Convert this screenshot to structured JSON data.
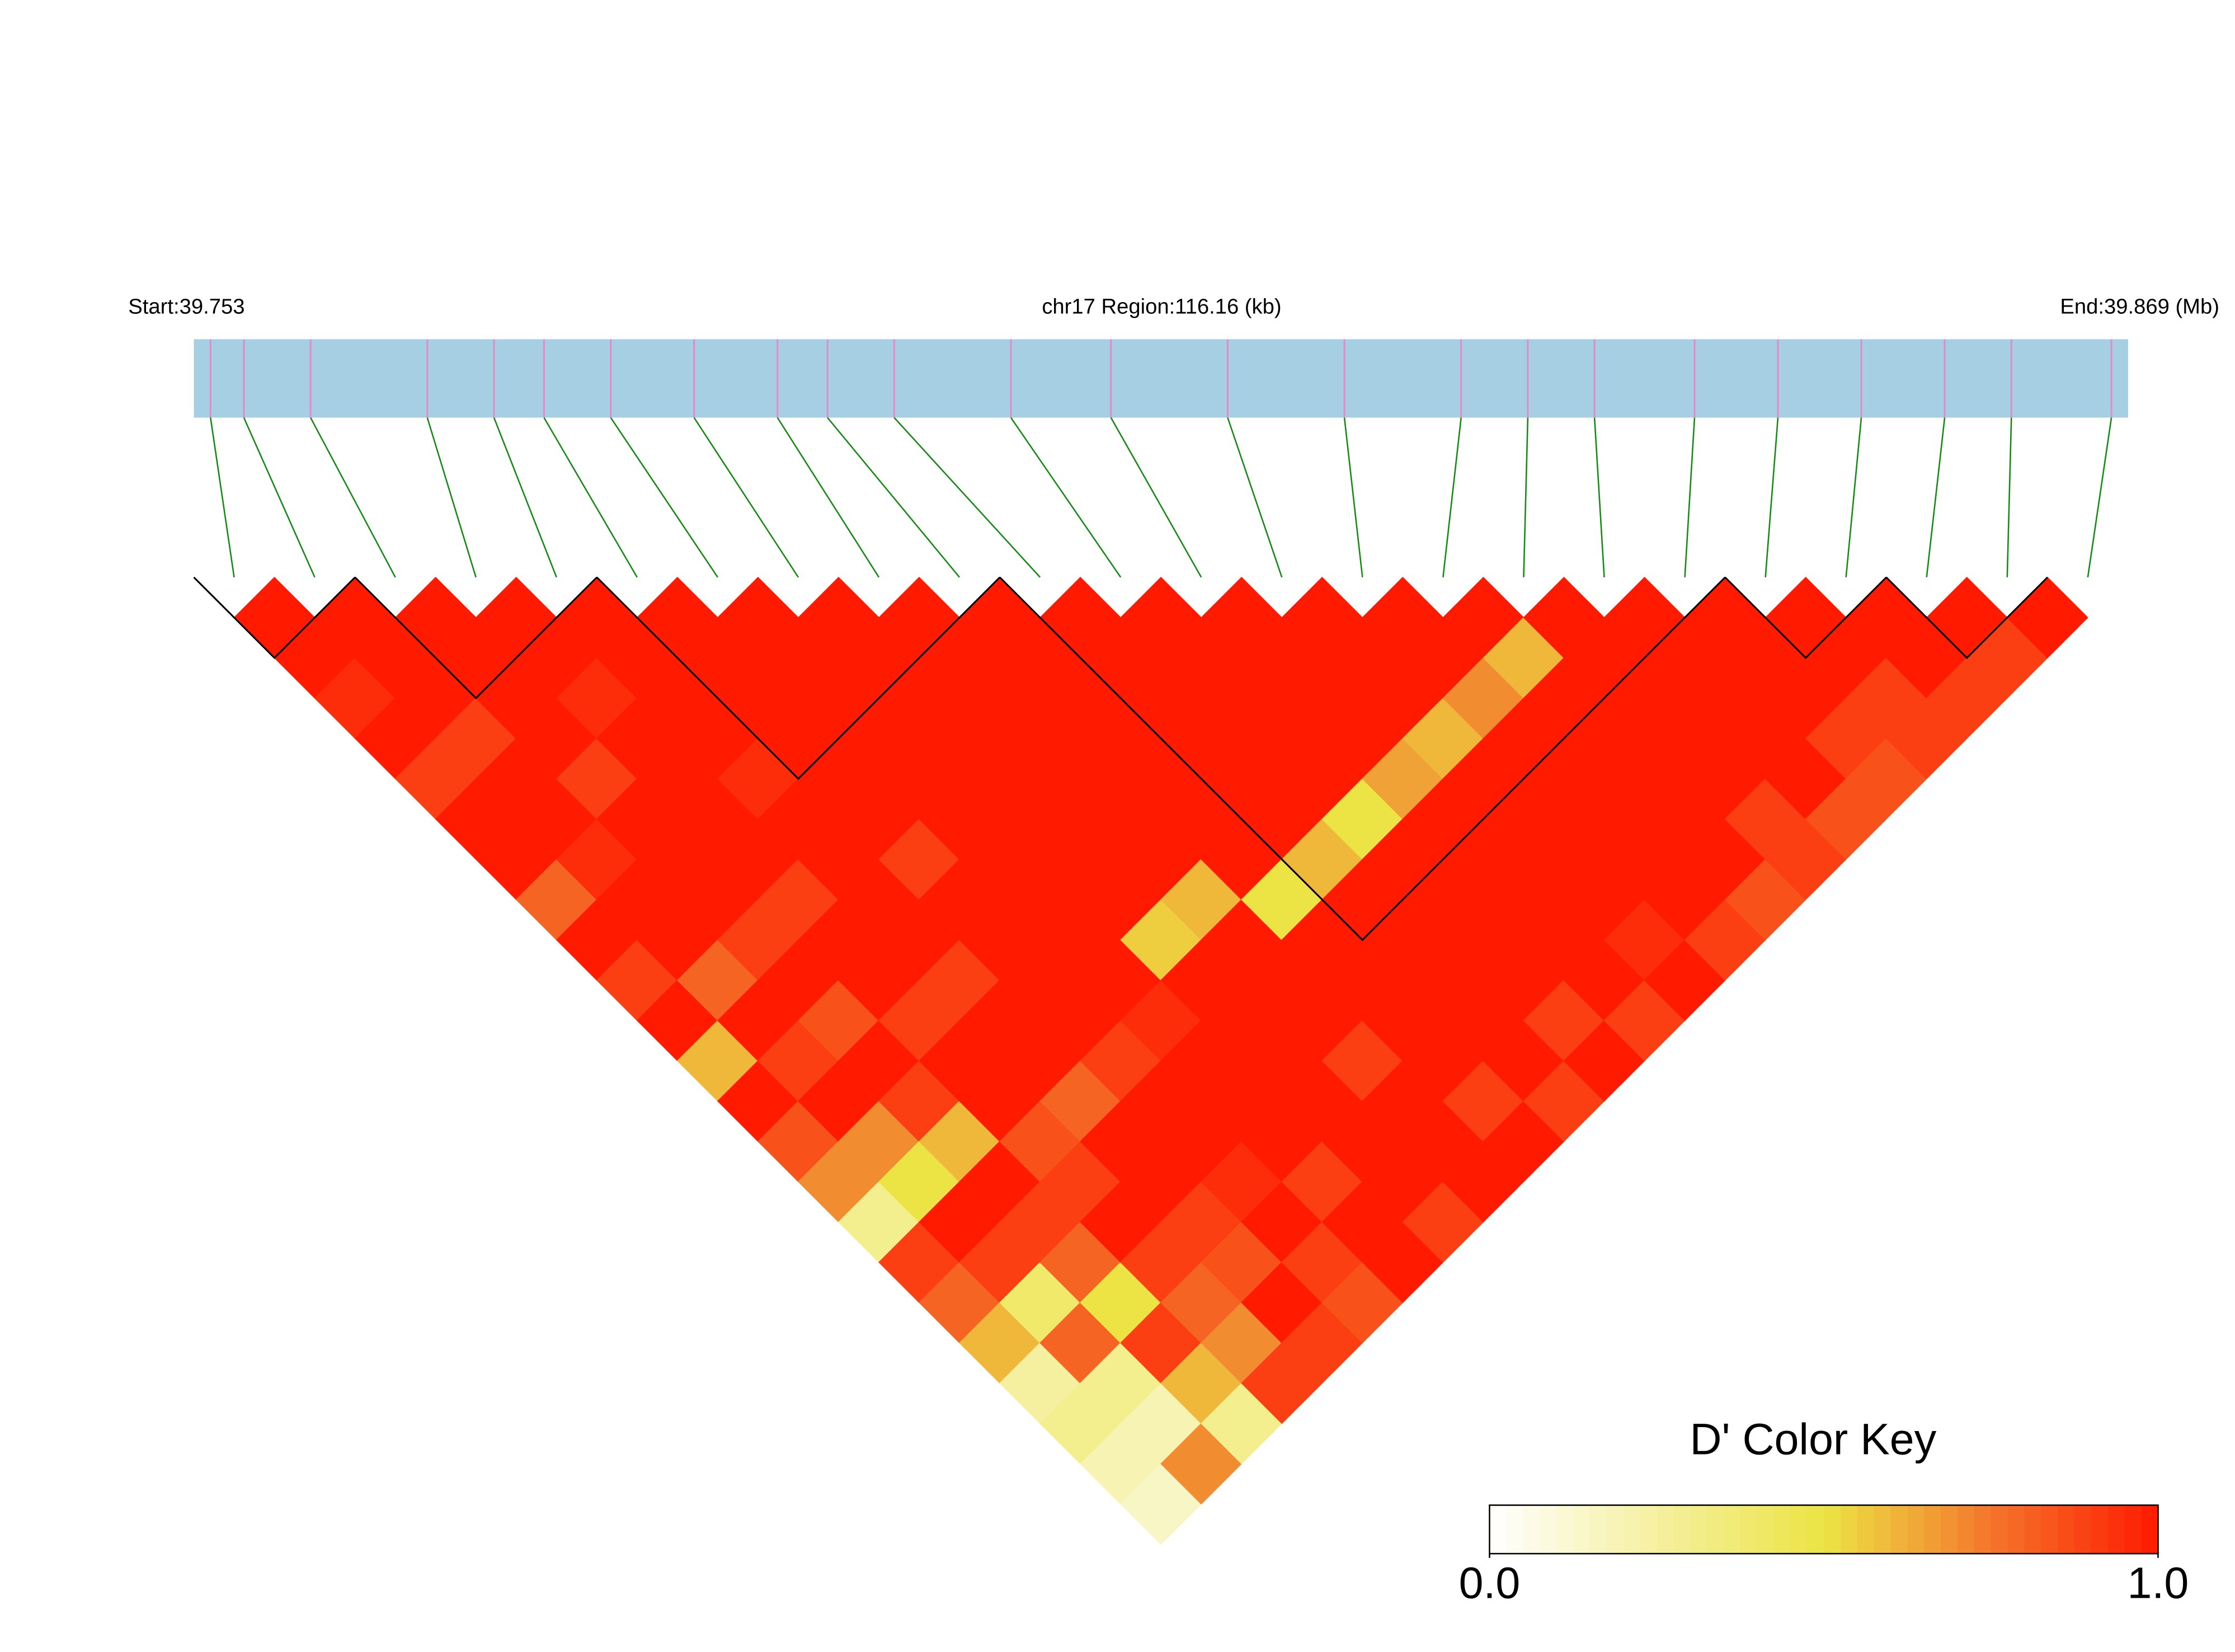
{
  "chart_data": {
    "type": "ld-heatmap",
    "start_label": "Start:39.753",
    "region_label": "chr17 Region:116.16 (kb)",
    "end_label": "End:39.869 (Mb)",
    "xlim": [
      39.753,
      39.869
    ],
    "positions": [
      39.754,
      39.756,
      39.76,
      39.767,
      39.771,
      39.774,
      39.778,
      39.783,
      39.788,
      39.791,
      39.795,
      39.802,
      39.808,
      39.815,
      39.822,
      39.829,
      39.833,
      39.837,
      39.843,
      39.848,
      39.853,
      39.858,
      39.862,
      39.868
    ],
    "dprime": [
      [
        1,
        1,
        0.95,
        1,
        0.9,
        1,
        1,
        0.8,
        1,
        0.9,
        1,
        0.6,
        1,
        0.85,
        0.7,
        0.3,
        0.9,
        0.8,
        0.6,
        0.25,
        0.3,
        0.2,
        0.15
      ],
      [
        1,
        1,
        1,
        0.9,
        1,
        1,
        0.95,
        1,
        1,
        0.8,
        1,
        0.9,
        1,
        0.7,
        0.5,
        1,
        0.9,
        0.4,
        0.8,
        0.3,
        0.2,
        0.7
      ],
      [
        1,
        1,
        1,
        1,
        0.9,
        1,
        1,
        1,
        0.9,
        1,
        0.85,
        1,
        0.9,
        0.6,
        1,
        0.9,
        0.8,
        0.5,
        0.9,
        0.6,
        0.3
      ],
      [
        1,
        1,
        0.95,
        1,
        1,
        1,
        1,
        0.9,
        1,
        1,
        0.9,
        1,
        1,
        0.85,
        0.9,
        1,
        0.9,
        0.8,
        0.7,
        0.9
      ],
      [
        1,
        1,
        1,
        1,
        0.95,
        1,
        1,
        1,
        1,
        0.9,
        1,
        1,
        0.8,
        1,
        1,
        0.9,
        0.85,
        1,
        0.9
      ],
      [
        1,
        1,
        1,
        1,
        1,
        1,
        0.9,
        1,
        1,
        1,
        1,
        0.9,
        1,
        1,
        0.95,
        1,
        0.9,
        0.85
      ],
      [
        1,
        1,
        1,
        1,
        1,
        1,
        1,
        1,
        1,
        1,
        0.95,
        1,
        1,
        1,
        0.9,
        1,
        1
      ],
      [
        1,
        1,
        1,
        1,
        1,
        1,
        1,
        1,
        0.55,
        1,
        1,
        1,
        1,
        1,
        1,
        0.9
      ],
      [
        1,
        1,
        1,
        1,
        1,
        1,
        1,
        0.6,
        1,
        1,
        1,
        0.9,
        1,
        1,
        1
      ],
      [
        1,
        1,
        1,
        1,
        1,
        1,
        1,
        0.5,
        1,
        1,
        1,
        1,
        0.9,
        1
      ],
      [
        1,
        1,
        1,
        1,
        1,
        1,
        0.6,
        1,
        1,
        1,
        1,
        1,
        0.9
      ],
      [
        1,
        1,
        1,
        1,
        1,
        0.5,
        1,
        1,
        1,
        1,
        0.9,
        1
      ],
      [
        1,
        1,
        1,
        1,
        0.65,
        1,
        1,
        1,
        1,
        1,
        0.9
      ],
      [
        1,
        1,
        1,
        0.6,
        1,
        1,
        1,
        1,
        0.95,
        1
      ],
      [
        1,
        1,
        0.7,
        1,
        1,
        1,
        1,
        1,
        0.9
      ],
      [
        1,
        0.6,
        1,
        1,
        1,
        1,
        1,
        0.85
      ],
      [
        1,
        1,
        1,
        1,
        1,
        0.9,
        0.9
      ],
      [
        1,
        1,
        1,
        1,
        1,
        0.85
      ],
      [
        1,
        1,
        1,
        0.9,
        0.85
      ],
      [
        1,
        1,
        0.9,
        0.9
      ],
      [
        1,
        1,
        0.9
      ],
      [
        1,
        0.9
      ],
      [
        1
      ]
    ],
    "blocks": [
      [
        0,
        1
      ],
      [
        2,
        4
      ],
      [
        5,
        9
      ],
      [
        10,
        18
      ],
      [
        19,
        20
      ],
      [
        21,
        22
      ]
    ],
    "gene_bar_color": "#a6cfe3",
    "snp_line_color": "#e38bc8",
    "connector_color": "#138a13",
    "colorscale": [
      "#ffffff",
      "#f5f0a0",
      "#ece444",
      "#f4762c",
      "#ff1a00"
    ],
    "key_title": "D' Color Key",
    "key_ticks": [
      {
        "value": 0,
        "label": "0.0"
      },
      {
        "value": 1,
        "label": "1.0"
      }
    ]
  }
}
